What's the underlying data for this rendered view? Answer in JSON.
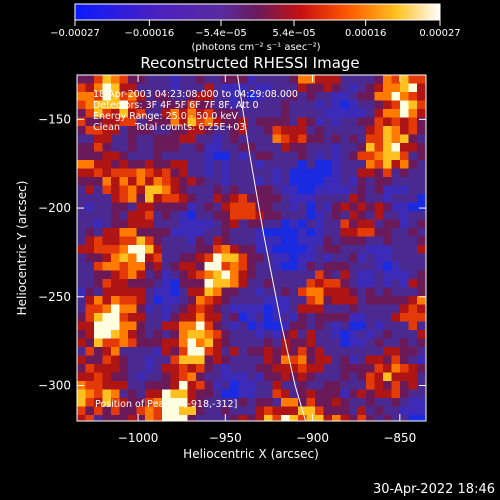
{
  "chart_data": {
    "type": "heatmap",
    "title": "Reconstructed RHESSI Image",
    "xlabel": "Heliocentric X (arcsec)",
    "ylabel": "Heliocentric Y (arcsec)",
    "xlim": [
      -1035,
      -835
    ],
    "ylim": [
      -320,
      -125
    ],
    "xticks": [
      -1000,
      -950,
      -900,
      -850
    ],
    "xtick_labels": [
      "−1000",
      "−950",
      "−900",
      "−850"
    ],
    "yticks": [
      -150,
      -200,
      -250,
      -300
    ],
    "ytick_labels": [
      "−150",
      "−200",
      "−250",
      "−300"
    ],
    "colorbar": {
      "ticks": [
        -0.00027,
        -0.00016,
        -5.4e-05,
        5.4e-05,
        0.00016,
        0.00027
      ],
      "tick_labels": [
        "−0.00027",
        "−0.00016",
        "−5.4e−05",
        "5.4e−05",
        "0.00016",
        "0.00027"
      ],
      "units": "(photons cm⁻² s⁻¹ asec⁻²)",
      "range": [
        -0.00027,
        0.00027
      ]
    },
    "info_lines": [
      "18-Apr-2003 04:23:08.000 to 04:29:08.000",
      "Detectors: 3F 4F 5F 6F 7F 8F, Att 0",
      "Energy Range: 25.0 - 50.0 keV",
      "Clean     Total counts: 6.25E+03"
    ],
    "peak_label": "Position of Peak = [-918,-312]",
    "limb_points": [
      [
        -943,
        -125
      ],
      [
        -936,
        -170
      ],
      [
        -928,
        -215
      ],
      [
        -918,
        -265
      ],
      [
        -910,
        -300
      ],
      [
        -904,
        -320
      ]
    ],
    "grid": false
  },
  "footer": {
    "timestamp": "30-Apr-2022 18:46"
  },
  "colors": {
    "background": "#000000",
    "text": "#ffffff",
    "limb": "#ffffff"
  }
}
